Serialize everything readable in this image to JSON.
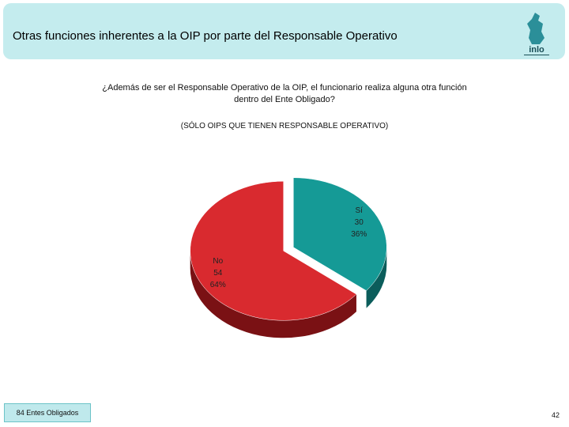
{
  "header": {
    "title": "Otras funciones inherentes a la OIP por parte del Responsable Operativo",
    "logo_text": "inlo"
  },
  "question": "¿Además de ser el Responsable Operativo de la OIP, el funcionario realiza alguna otra función dentro del Ente Obligado?",
  "subtitle": "(SÓLO OIPS QUE TIENEN RESPONSABLE OPERATIVO)",
  "chart_data": {
    "type": "pie",
    "style": "3d-exploded",
    "slices": [
      {
        "label": "Sí",
        "value": 30,
        "percent": "36%",
        "color": "#159a96",
        "side_color": "#0b5d5b"
      },
      {
        "label": "No",
        "value": 54,
        "percent": "64%",
        "color": "#d92a2f",
        "side_color": "#7a1114"
      }
    ],
    "legend": "none"
  },
  "footer": {
    "entes_label": "84 Entes Obligados",
    "page_number": "42"
  }
}
